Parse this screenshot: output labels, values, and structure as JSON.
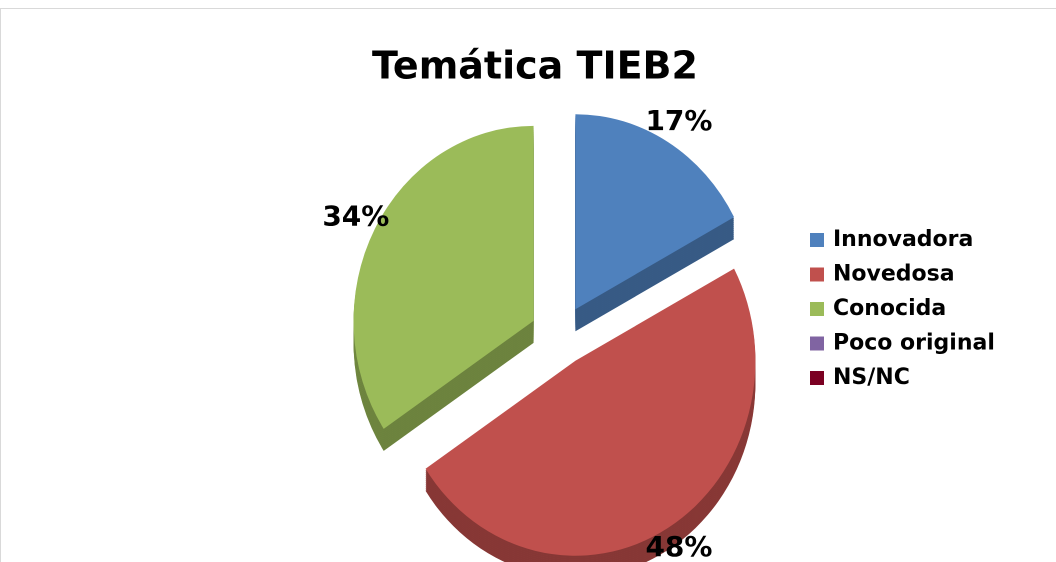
{
  "chart_data": {
    "type": "pie",
    "title": "Temática TIEB2",
    "categories": [
      "Innovadora",
      "Novedosa",
      "Conocida",
      "Poco original",
      "NS/NC"
    ],
    "values": [
      17,
      48,
      34,
      0,
      0
    ],
    "value_labels": [
      "17%",
      "48%",
      "34%",
      null,
      null
    ],
    "colors": [
      "#4f81bd",
      "#c0504d",
      "#9bbb59",
      "#8064a2",
      "#7b0022"
    ],
    "legend": "right",
    "exploded": true,
    "three_d": true
  }
}
